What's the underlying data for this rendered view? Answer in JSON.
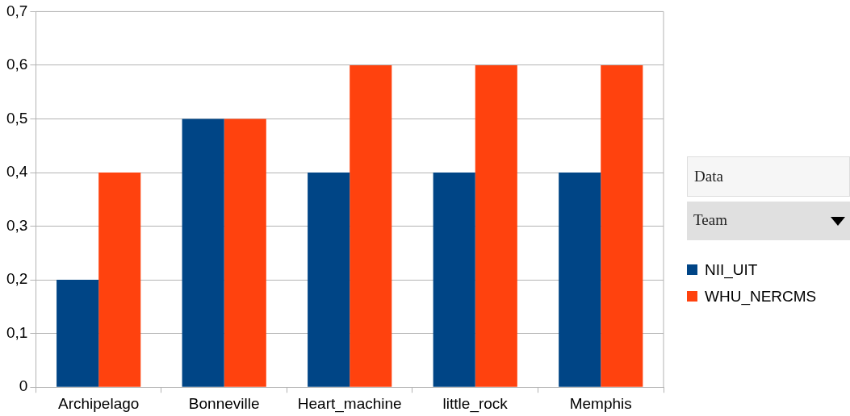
{
  "chart_data": {
    "type": "bar",
    "categories": [
      "Archipelago",
      "Bonneville",
      "Heart_machine",
      "little_rock",
      "Memphis"
    ],
    "series": [
      {
        "name": "NII_UIT",
        "color": "#004586",
        "values": [
          0.2,
          0.5,
          0.4,
          0.4,
          0.4
        ]
      },
      {
        "name": "WHU_NERCMS",
        "color": "#ff420e",
        "values": [
          0.4,
          0.5,
          0.6,
          0.6,
          0.6
        ]
      }
    ],
    "ylim": [
      0,
      0.7
    ],
    "yticks": [
      0,
      {
        "value": 0.1,
        "label": "0,1"
      },
      {
        "value": 0.2,
        "label": "0,2"
      },
      {
        "value": 0.3,
        "label": "0,3"
      },
      {
        "value": 0.4,
        "label": "0,4"
      },
      {
        "value": 0.5,
        "label": "0,5"
      },
      {
        "value": 0.6,
        "label": "0,6"
      },
      {
        "value": 0.7,
        "label": "0,7"
      }
    ],
    "grid": "y",
    "legend": "right",
    "legend_title": "Team",
    "annotations": [
      "Data"
    ]
  }
}
